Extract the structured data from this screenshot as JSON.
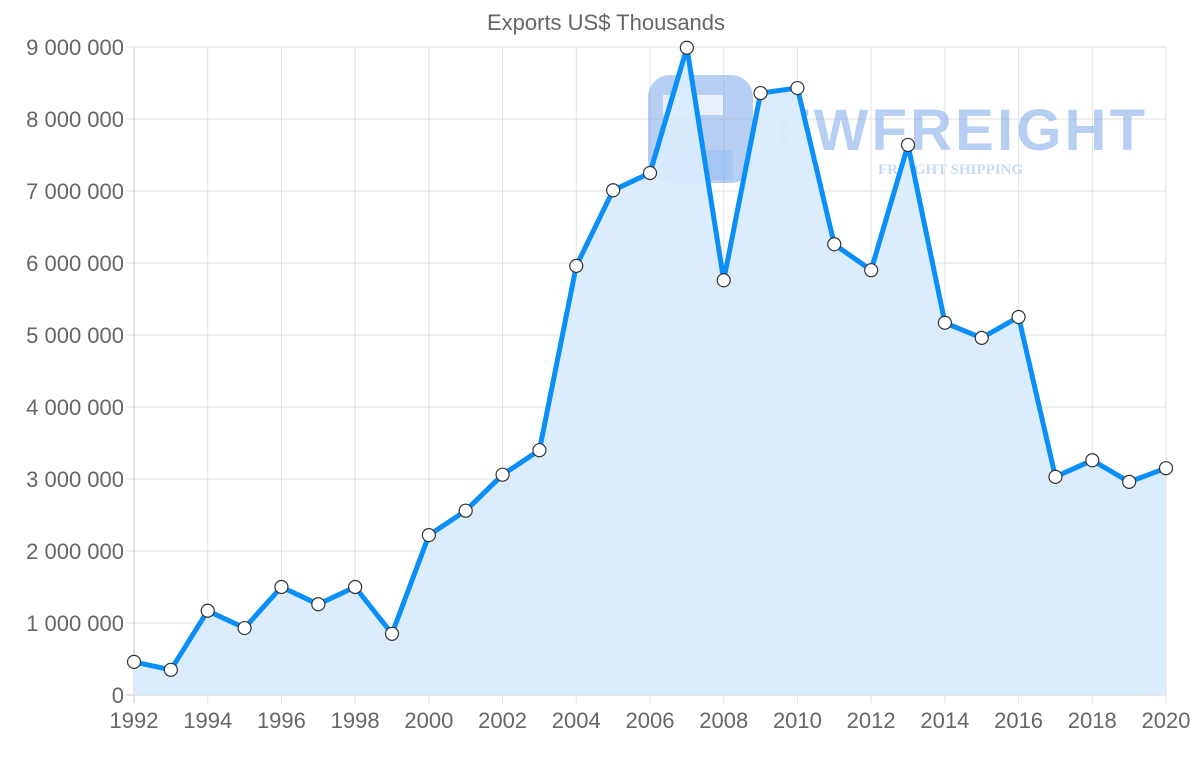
{
  "chart_data": {
    "type": "area",
    "title": "Exports US$ Thousands",
    "xlabel": "",
    "ylabel": "",
    "x": [
      1992,
      1993,
      1994,
      1995,
      1996,
      1997,
      1998,
      1999,
      2000,
      2001,
      2002,
      2003,
      2004,
      2005,
      2006,
      2007,
      2008,
      2009,
      2010,
      2011,
      2012,
      2013,
      2014,
      2015,
      2016,
      2017,
      2018,
      2019,
      2020
    ],
    "series": [
      {
        "name": "Exports US$ Thousands",
        "values": [
          460000,
          350000,
          1170000,
          930000,
          1500000,
          1260000,
          1500000,
          850000,
          2220000,
          2560000,
          3060000,
          3400000,
          5960000,
          7010000,
          7250000,
          8990000,
          5760000,
          8360000,
          8430000,
          6260000,
          5900000,
          7640000,
          5170000,
          4960000,
          5250000,
          3030000,
          3260000,
          2960000,
          3150000
        ]
      }
    ],
    "ylim": [
      0,
      9000000
    ],
    "xlim": [
      1992,
      2020
    ],
    "y_ticks": [
      "0",
      "1 000 000",
      "2 000 000",
      "3 000 000",
      "4 000 000",
      "5 000 000",
      "6 000 000",
      "7 000 000",
      "8 000 000",
      "9 000 000"
    ],
    "x_ticks": [
      "1992",
      "1994",
      "1996",
      "1998",
      "2000",
      "2002",
      "2004",
      "2006",
      "2008",
      "2010",
      "2012",
      "2014",
      "2016",
      "2018",
      "2020"
    ],
    "grid": true,
    "legend": "none",
    "colors": {
      "line": "#0a8ef7",
      "fill": "#d9ecfd",
      "marker_fill": "#ffffff",
      "marker_stroke": "#333333",
      "grid": "#e2e2e2"
    }
  },
  "watermark": {
    "brand": "FWFREIGHT",
    "tagline": "FREIGHT SHIPPING"
  }
}
